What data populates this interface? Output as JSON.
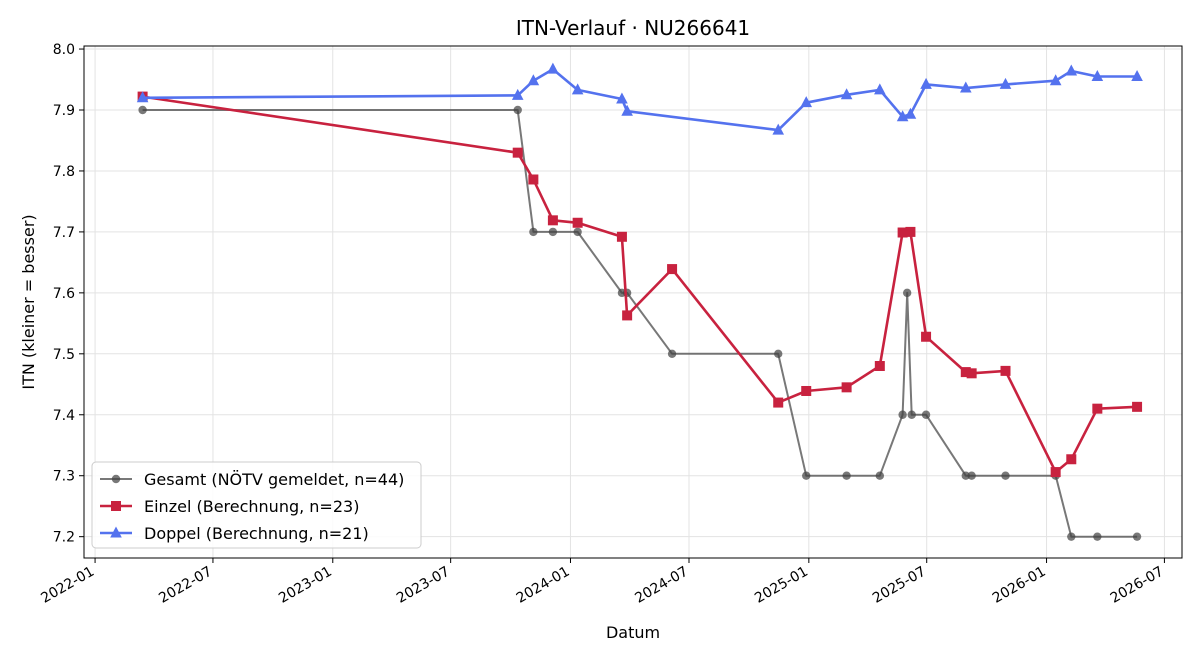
{
  "chart_data": {
    "type": "line",
    "title": "ITN-Verlauf · NU266641",
    "xlabel": "Datum",
    "ylabel": "ITN  (kleiner = besser)",
    "x_ticks": [
      "2022-01",
      "2022-07",
      "2023-01",
      "2023-07",
      "2024-01",
      "2024-07",
      "2025-01",
      "2025-07",
      "2026-01",
      "2026-07"
    ],
    "y_ticks": [
      "7.2",
      "7.3",
      "7.4",
      "7.5",
      "7.6",
      "7.7",
      "7.8",
      "7.9",
      "8.0"
    ],
    "xlim": [
      "2021-12-15",
      "2026-07-28"
    ],
    "ylim": [
      7.165,
      8.005
    ],
    "grid": true,
    "legend_position": "lower-left",
    "series": [
      {
        "name": "Gesamt (NÖTV gemeldet, n=44)",
        "color": "#444444",
        "marker": "circle",
        "points": [
          [
            "2022-03-15",
            7.9
          ],
          [
            "2023-10-12",
            7.9
          ],
          [
            "2023-11-05",
            7.7
          ],
          [
            "2023-12-05",
            7.7
          ],
          [
            "2024-01-12",
            7.7
          ],
          [
            "2024-03-20",
            7.6
          ],
          [
            "2024-03-28",
            7.6
          ],
          [
            "2024-06-05",
            7.5
          ],
          [
            "2024-11-15",
            7.5
          ],
          [
            "2024-12-28",
            7.3
          ],
          [
            "2025-02-28",
            7.3
          ],
          [
            "2025-04-20",
            7.3
          ],
          [
            "2025-05-25",
            7.4
          ],
          [
            "2025-06-01",
            7.6
          ],
          [
            "2025-06-08",
            7.4
          ],
          [
            "2025-06-30",
            7.4
          ],
          [
            "2025-08-30",
            7.3
          ],
          [
            "2025-09-08",
            7.3
          ],
          [
            "2025-10-30",
            7.3
          ],
          [
            "2026-01-15",
            7.3
          ],
          [
            "2026-02-08",
            7.2
          ],
          [
            "2026-03-20",
            7.2
          ],
          [
            "2026-05-20",
            7.2
          ]
        ]
      },
      {
        "name": "Einzel (Berechnung, n=23)",
        "color": "#c8223f",
        "marker": "square",
        "points": [
          [
            "2022-03-15",
            7.922
          ],
          [
            "2023-10-12",
            7.83
          ],
          [
            "2023-11-05",
            7.786
          ],
          [
            "2023-12-05",
            7.719
          ],
          [
            "2024-01-12",
            7.715
          ],
          [
            "2024-03-20",
            7.692
          ],
          [
            "2024-03-28",
            7.563
          ],
          [
            "2024-06-05",
            7.639
          ],
          [
            "2024-11-15",
            7.42
          ],
          [
            "2024-12-28",
            7.439
          ],
          [
            "2025-02-28",
            7.445
          ],
          [
            "2025-04-20",
            7.48
          ],
          [
            "2025-05-25",
            7.699
          ],
          [
            "2025-06-06",
            7.7
          ],
          [
            "2025-06-30",
            7.528
          ],
          [
            "2025-08-30",
            7.47
          ],
          [
            "2025-09-08",
            7.468
          ],
          [
            "2025-10-30",
            7.472
          ],
          [
            "2026-01-15",
            7.306
          ],
          [
            "2026-02-08",
            7.327
          ],
          [
            "2026-03-20",
            7.41
          ],
          [
            "2026-05-20",
            7.413
          ]
        ]
      },
      {
        "name": "Doppel (Berechnung, n=21)",
        "color": "#5472ee",
        "marker": "triangle",
        "points": [
          [
            "2022-03-15",
            7.92
          ],
          [
            "2023-10-12",
            7.924
          ],
          [
            "2023-11-05",
            7.948
          ],
          [
            "2023-12-05",
            7.967
          ],
          [
            "2024-01-12",
            7.933
          ],
          [
            "2024-03-20",
            7.918
          ],
          [
            "2024-03-28",
            7.898
          ],
          [
            "2024-11-15",
            7.867
          ],
          [
            "2024-12-28",
            7.912
          ],
          [
            "2025-02-28",
            7.925
          ],
          [
            "2025-04-20",
            7.933
          ],
          [
            "2025-05-25",
            7.889
          ],
          [
            "2025-06-06",
            7.893
          ],
          [
            "2025-06-30",
            7.942
          ],
          [
            "2025-08-30",
            7.936
          ],
          [
            "2025-10-30",
            7.942
          ],
          [
            "2026-01-15",
            7.948
          ],
          [
            "2026-02-08",
            7.964
          ],
          [
            "2026-03-20",
            7.955
          ],
          [
            "2026-05-20",
            7.955
          ]
        ]
      }
    ]
  }
}
